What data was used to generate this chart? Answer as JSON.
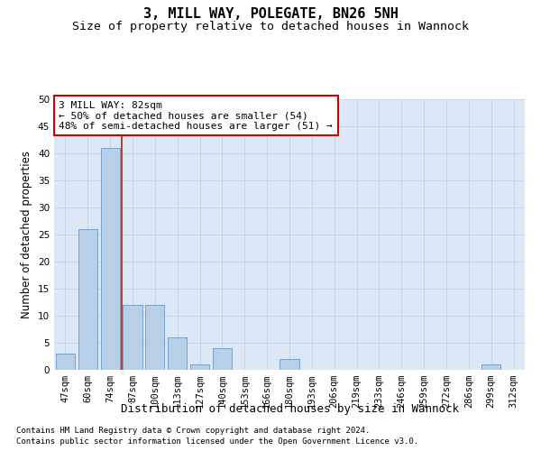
{
  "title": "3, MILL WAY, POLEGATE, BN26 5NH",
  "subtitle": "Size of property relative to detached houses in Wannock",
  "xlabel": "Distribution of detached houses by size in Wannock",
  "ylabel": "Number of detached properties",
  "categories": [
    "47sqm",
    "60sqm",
    "74sqm",
    "87sqm",
    "100sqm",
    "113sqm",
    "127sqm",
    "140sqm",
    "153sqm",
    "166sqm",
    "180sqm",
    "193sqm",
    "206sqm",
    "219sqm",
    "233sqm",
    "246sqm",
    "259sqm",
    "272sqm",
    "286sqm",
    "299sqm",
    "312sqm"
  ],
  "values": [
    3,
    26,
    41,
    12,
    12,
    6,
    1,
    4,
    0,
    0,
    2,
    0,
    0,
    0,
    0,
    0,
    0,
    0,
    0,
    1,
    0
  ],
  "bar_color": "#b8cfe8",
  "bar_edge_color": "#6699cc",
  "vline_index": 2.5,
  "annotation_line1": "3 MILL WAY: 82sqm",
  "annotation_line2": "← 50% of detached houses are smaller (54)",
  "annotation_line3": "48% of semi-detached houses are larger (51) →",
  "annotation_box_facecolor": "#ffffff",
  "annotation_box_edgecolor": "#cc0000",
  "ylim": [
    0,
    50
  ],
  "yticks": [
    0,
    5,
    10,
    15,
    20,
    25,
    30,
    35,
    40,
    45,
    50
  ],
  "vline_color": "#aa2222",
  "grid_color": "#c8d4e8",
  "bg_color": "#dce8f5",
  "footnote1": "Contains HM Land Registry data © Crown copyright and database right 2024.",
  "footnote2": "Contains public sector information licensed under the Open Government Licence v3.0.",
  "title_fontsize": 11,
  "subtitle_fontsize": 9.5,
  "xlabel_fontsize": 9,
  "ylabel_fontsize": 8.5,
  "tick_fontsize": 7.5,
  "annotation_fontsize": 8,
  "footnote_fontsize": 6.5
}
